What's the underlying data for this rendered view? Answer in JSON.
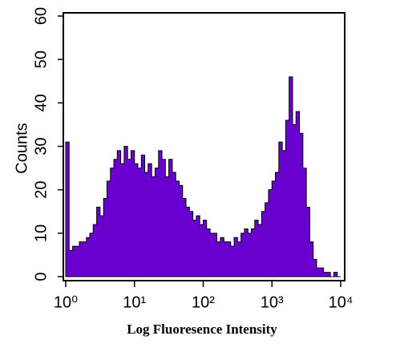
{
  "chart_data": {
    "type": "area",
    "xlabel": "Log Fluoresence Intensity",
    "ylabel": "Counts",
    "xscale": "log",
    "color": "#6a00d0",
    "x": [
      1,
      1.12,
      1.26,
      1.41,
      1.58,
      1.78,
      2,
      2.24,
      2.51,
      2.82,
      3.16,
      3.55,
      3.98,
      4.47,
      5.01,
      5.62,
      6.31,
      7.08,
      7.94,
      8.91,
      10,
      11.2,
      12.6,
      14.1,
      15.8,
      17.8,
      20,
      22.4,
      25.1,
      28.2,
      31.6,
      35.5,
      39.8,
      44.7,
      50.1,
      56.2,
      63.1,
      70.8,
      79.4,
      89.1,
      100,
      112,
      126,
      141,
      158,
      178,
      200,
      224,
      251,
      282,
      316,
      355,
      398,
      447,
      501,
      562,
      631,
      708,
      794,
      891,
      1000,
      1122,
      1259,
      1413,
      1585,
      1778,
      1995,
      2239,
      2512,
      2818,
      3162,
      3548,
      3981,
      4467,
      5012,
      5623,
      6310,
      7079,
      7943,
      8913,
      10000
    ],
    "values": [
      31,
      6,
      7,
      7,
      8,
      8,
      9,
      10,
      12,
      16,
      14,
      18,
      22,
      25,
      27,
      29,
      26,
      30,
      27,
      29,
      26,
      25,
      28,
      24,
      26,
      23,
      25,
      29,
      27,
      23,
      27,
      24,
      22,
      21,
      18,
      16,
      15,
      13,
      14,
      12,
      13,
      11,
      10,
      10,
      8,
      9,
      8,
      8,
      7,
      9,
      8,
      10,
      11,
      10,
      11,
      13,
      12,
      15,
      17,
      20,
      22,
      24,
      31,
      29,
      36,
      46,
      35,
      38,
      33,
      25,
      16,
      8,
      4,
      2,
      2,
      1,
      1,
      0,
      1,
      0,
      0
    ],
    "xlim": [
      1,
      10000
    ],
    "xticks": [
      {
        "value": 1,
        "label": "10⁰"
      },
      {
        "value": 10,
        "label": "10¹"
      },
      {
        "value": 100,
        "label": "10²"
      },
      {
        "value": 1000,
        "label": "10³"
      },
      {
        "value": 10000,
        "label": "10⁴"
      }
    ],
    "ylim": [
      0,
      60
    ],
    "yticks": [
      0,
      10,
      20,
      30,
      40,
      50,
      60
    ]
  }
}
